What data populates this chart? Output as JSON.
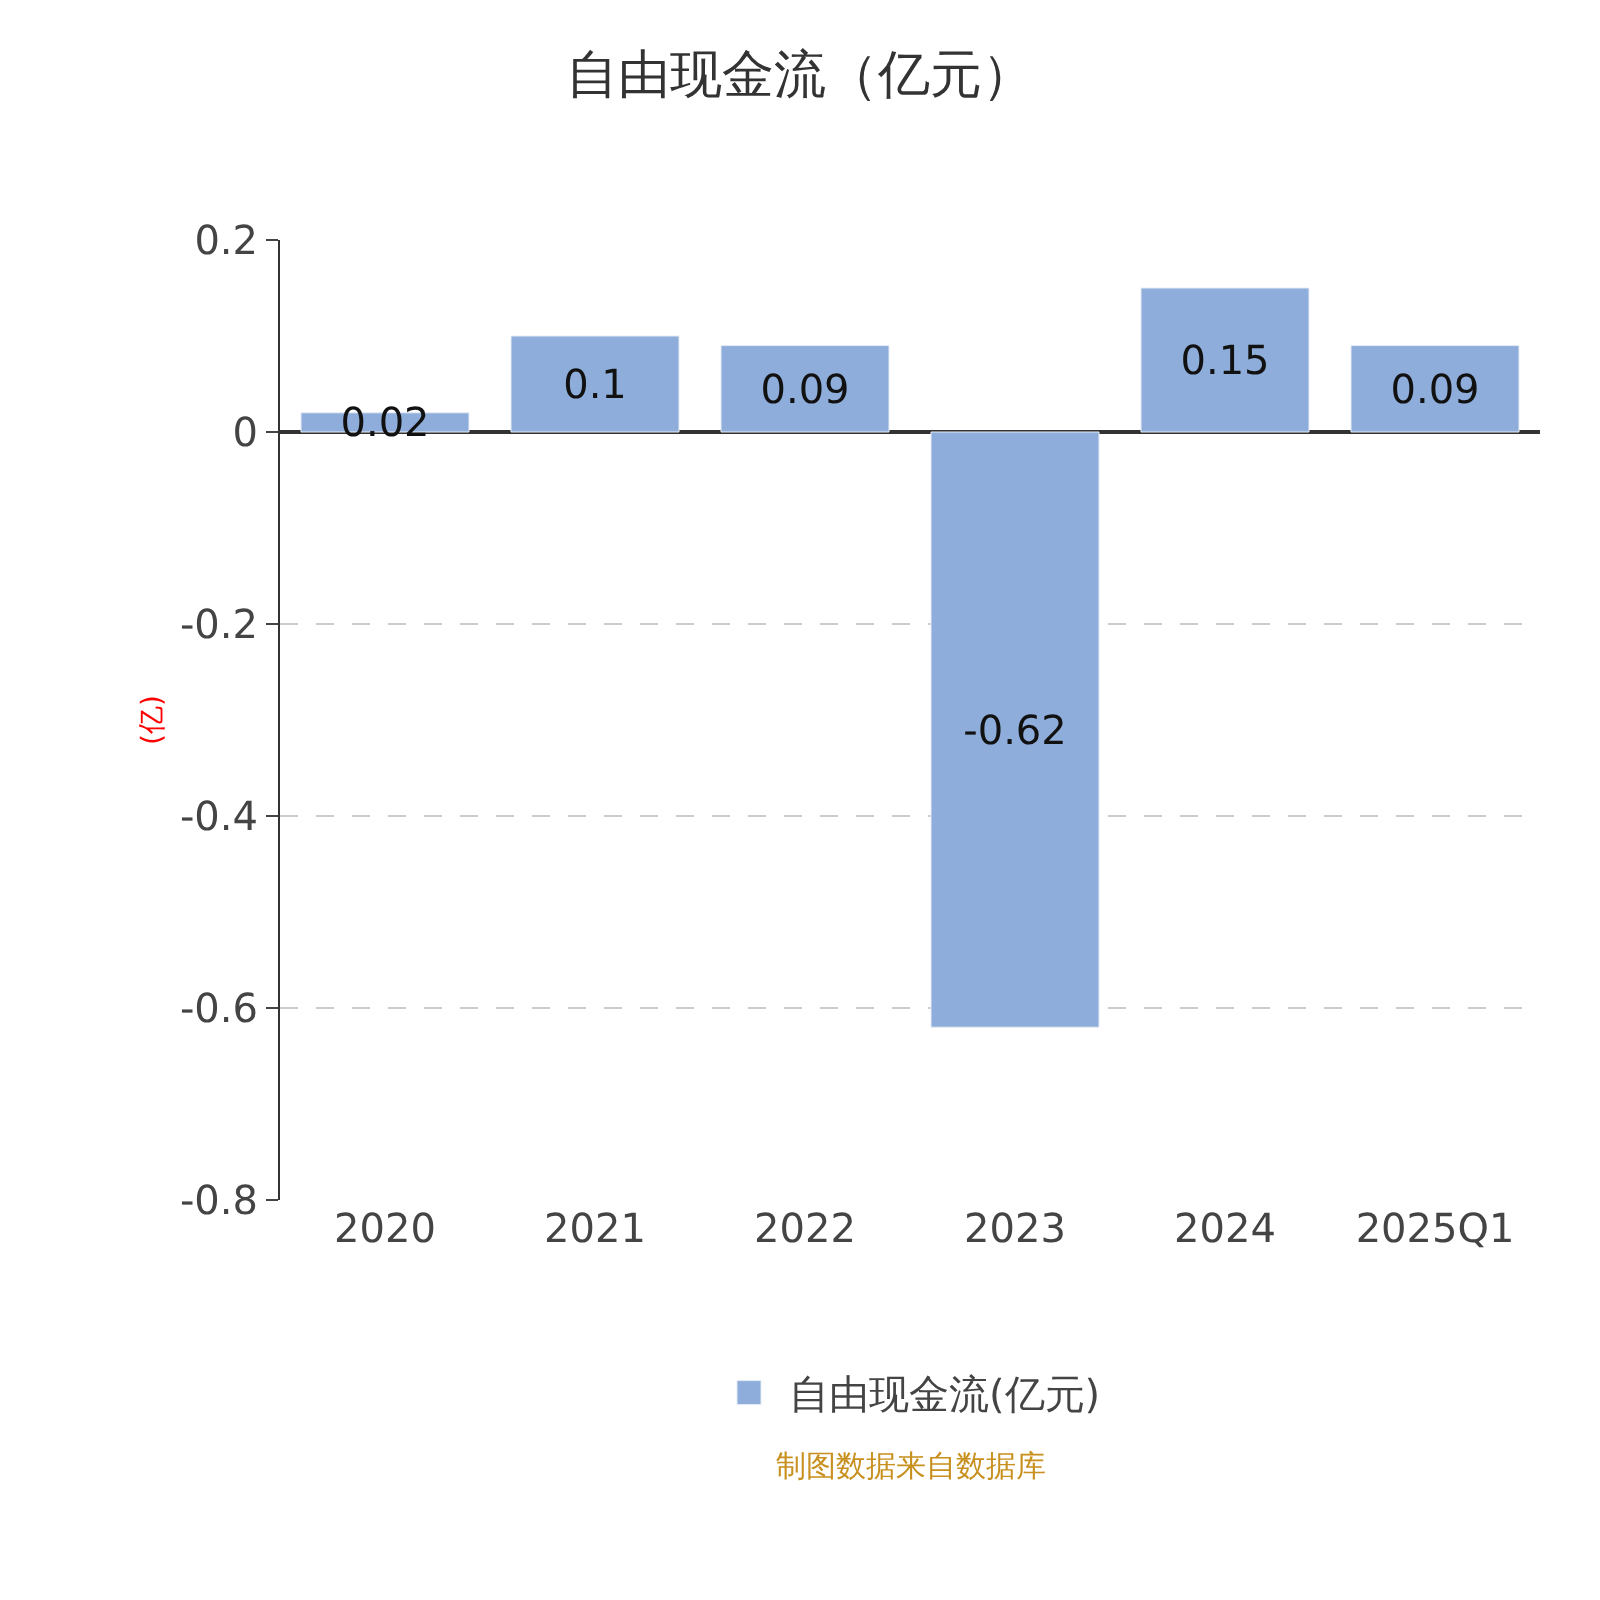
{
  "chart_data": {
    "type": "bar",
    "title": "自由现金流（亿元）",
    "ylabel": "(亿)",
    "categories": [
      "2020",
      "2021",
      "2022",
      "2023",
      "2024",
      "2025Q1"
    ],
    "series": [
      {
        "name": "自由现金流(亿元)",
        "color": "#8eaddb",
        "values": [
          0.02,
          0.1,
          0.09,
          -0.62,
          0.15,
          0.09
        ]
      }
    ],
    "ylim": [
      -0.8,
      0.2
    ],
    "yticks": [
      0.2,
      0,
      -0.2,
      -0.4,
      -0.6,
      -0.8
    ],
    "grid": "y",
    "legend": "bottom",
    "data_labels": true,
    "annotations": [
      "制图数据来自数据库"
    ]
  }
}
